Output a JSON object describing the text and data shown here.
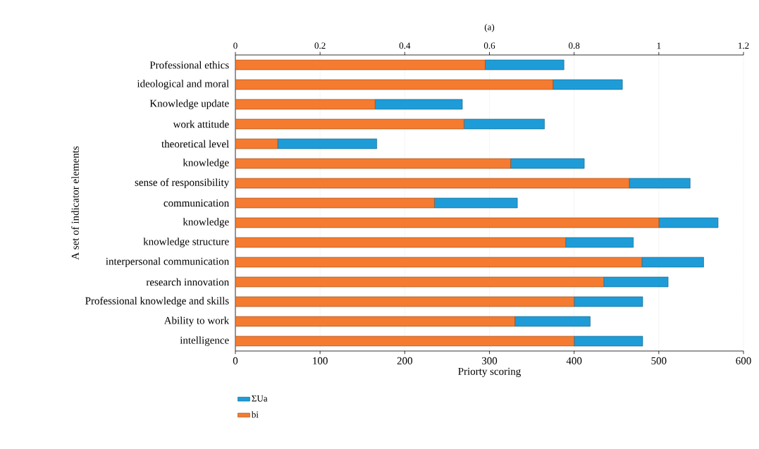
{
  "chart_data": {
    "type": "bar",
    "orientation": "horizontal",
    "stacked": true,
    "title": "(a)",
    "xlabel": "Priorty scoring",
    "ylabel": "A set of indicator elements",
    "categories": [
      "Professional ethics",
      "ideological and moral",
      "Knowledge update",
      "work attitude",
      "theoretical level",
      "knowledge",
      "sense of responsibility",
      "communication",
      "knowledge",
      "knowledge structure",
      "interpersonal communication",
      "research innovation",
      "Professional knowledge and skills",
      "Ability to work",
      "intelligence"
    ],
    "series": [
      {
        "name": "bi",
        "color": "#f47b30",
        "values": [
          295,
          375,
          165,
          270,
          50,
          325,
          465,
          235,
          500,
          390,
          480,
          435,
          400,
          330,
          400
        ]
      },
      {
        "name": "ΣUa",
        "color": "#1e9cd7",
        "values": [
          93,
          82,
          103,
          95,
          117,
          87,
          72,
          98,
          70,
          80,
          73,
          76,
          81,
          89,
          81
        ]
      }
    ],
    "xlim": [
      0,
      600
    ],
    "xticks": [
      0,
      100,
      200,
      300,
      400,
      500,
      600
    ],
    "x2lim": [
      0,
      1.2
    ],
    "x2ticks": [
      0,
      0.2,
      0.4,
      0.6,
      0.8,
      1,
      1.2
    ],
    "grid": "x",
    "legend": "bottom left"
  }
}
